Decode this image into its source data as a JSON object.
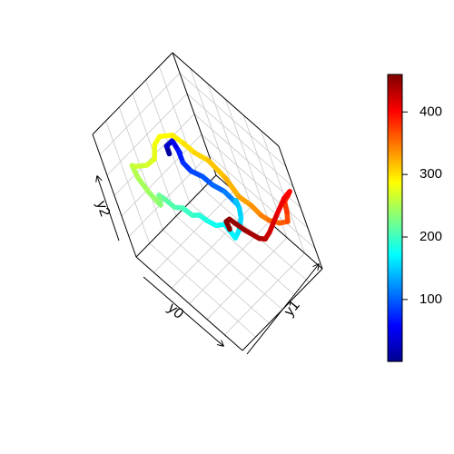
{
  "chart_data": {
    "type": "line",
    "kind": "3d-trajectory",
    "projection": "box-3d",
    "grid": true,
    "axis_labels": {
      "x": "y0",
      "y": "y1",
      "z": "y2"
    },
    "colorbar": {
      "placement": "right",
      "range": [
        1,
        460
      ],
      "ticks": [
        100,
        200,
        300,
        400
      ],
      "tick_labels": [
        "100",
        "200",
        "300",
        "400"
      ],
      "palette": [
        "#00008F",
        "#0000FF",
        "#0080FF",
        "#00FFFF",
        "#80FF80",
        "#FFFF00",
        "#FF8000",
        "#FF0000",
        "#800000"
      ]
    },
    "color_by": "time index",
    "series": [
      {
        "points": [
          [
            0.03,
            0.62,
            0.45,
            1
          ],
          [
            0.06,
            0.6,
            0.55,
            20
          ],
          [
            0.12,
            0.63,
            0.62,
            40
          ],
          [
            0.18,
            0.62,
            0.57,
            55
          ],
          [
            0.2,
            0.6,
            0.62,
            65
          ],
          [
            0.25,
            0.57,
            0.58,
            75
          ],
          [
            0.35,
            0.55,
            0.6,
            85
          ],
          [
            0.45,
            0.57,
            0.62,
            95
          ],
          [
            0.5,
            0.6,
            0.57,
            100
          ],
          [
            0.6,
            0.62,
            0.58,
            110
          ],
          [
            0.68,
            0.62,
            0.57,
            120
          ],
          [
            0.74,
            0.6,
            0.6,
            128
          ],
          [
            0.78,
            0.57,
            0.66,
            136
          ],
          [
            0.82,
            0.55,
            0.72,
            144
          ],
          [
            0.86,
            0.53,
            0.7,
            150
          ],
          [
            0.85,
            0.52,
            0.62,
            155
          ],
          [
            0.82,
            0.48,
            0.52,
            160
          ],
          [
            0.78,
            0.45,
            0.45,
            166
          ],
          [
            0.7,
            0.45,
            0.5,
            172
          ],
          [
            0.62,
            0.42,
            0.45,
            178
          ],
          [
            0.55,
            0.4,
            0.45,
            184
          ],
          [
            0.5,
            0.38,
            0.47,
            190
          ],
          [
            0.45,
            0.35,
            0.45,
            196
          ],
          [
            0.38,
            0.33,
            0.47,
            202
          ],
          [
            0.32,
            0.3,
            0.45,
            208
          ],
          [
            0.26,
            0.28,
            0.48,
            214
          ],
          [
            0.24,
            0.25,
            0.52,
            220
          ],
          [
            0.3,
            0.2,
            0.57,
            226
          ],
          [
            0.38,
            0.14,
            0.62,
            232
          ],
          [
            0.4,
            0.1,
            0.7,
            238
          ],
          [
            0.36,
            0.08,
            0.76,
            244
          ],
          [
            0.26,
            0.1,
            0.78,
            250
          ],
          [
            0.18,
            0.14,
            0.79,
            256
          ],
          [
            0.16,
            0.18,
            0.74,
            262
          ],
          [
            0.18,
            0.28,
            0.7,
            268
          ],
          [
            0.22,
            0.34,
            0.74,
            274
          ],
          [
            0.2,
            0.4,
            0.8,
            280
          ],
          [
            0.25,
            0.44,
            0.88,
            286
          ],
          [
            0.34,
            0.5,
            0.92,
            292
          ],
          [
            0.38,
            0.55,
            0.85,
            298
          ],
          [
            0.44,
            0.58,
            0.8,
            304
          ],
          [
            0.53,
            0.62,
            0.78,
            310
          ],
          [
            0.62,
            0.66,
            0.68,
            318
          ],
          [
            0.7,
            0.67,
            0.58,
            326
          ],
          [
            0.78,
            0.7,
            0.55,
            334
          ],
          [
            0.84,
            0.72,
            0.5,
            342
          ],
          [
            0.88,
            0.75,
            0.47,
            350
          ],
          [
            0.94,
            0.8,
            0.46,
            358
          ],
          [
            0.98,
            0.85,
            0.47,
            366
          ],
          [
            0.97,
            0.88,
            0.52,
            374
          ],
          [
            0.93,
            0.92,
            0.55,
            382
          ],
          [
            0.96,
            0.95,
            0.6,
            390
          ],
          [
            0.99,
            0.96,
            0.65,
            398
          ],
          [
            0.97,
            0.9,
            0.62,
            406
          ],
          [
            0.92,
            0.8,
            0.5,
            414
          ],
          [
            0.9,
            0.7,
            0.42,
            422
          ],
          [
            0.87,
            0.66,
            0.37,
            430
          ],
          [
            0.82,
            0.64,
            0.35,
            438
          ],
          [
            0.72,
            0.6,
            0.37,
            446
          ],
          [
            0.64,
            0.55,
            0.43,
            452
          ],
          [
            0.66,
            0.5,
            0.46,
            456
          ],
          [
            0.7,
            0.48,
            0.44,
            460
          ]
        ]
      }
    ]
  }
}
